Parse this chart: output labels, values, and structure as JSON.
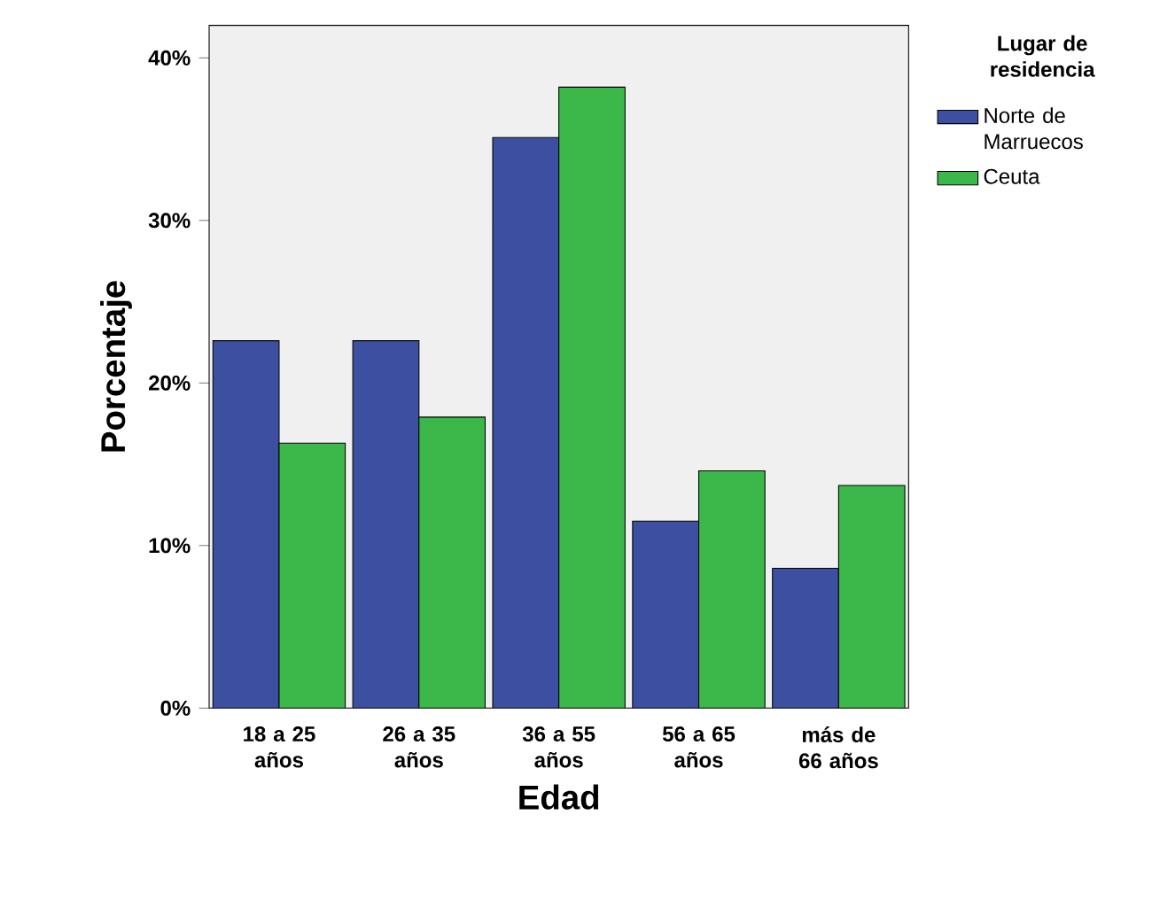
{
  "chart_data": {
    "type": "bar",
    "xlabel": "Edad",
    "ylabel": "Porcentaje",
    "legend_title": "Lugar de residencia",
    "legend": "right",
    "categories": [
      "18 a 25 años",
      "26 a 35 años",
      "36 a 55 años",
      "56 a 65 años",
      "más de 66 años"
    ],
    "ylim": [
      0,
      42
    ],
    "yticks": [
      {
        "value": 0,
        "label": "0%"
      },
      {
        "value": 10,
        "label": "10%"
      },
      {
        "value": 20,
        "label": "20%"
      },
      {
        "value": 30,
        "label": "30%"
      },
      {
        "value": 40,
        "label": "40%"
      }
    ],
    "series": [
      {
        "name": "Norte de Marruecos",
        "color": "#3c4fa0",
        "values": [
          22.6,
          22.6,
          35.1,
          11.5,
          8.6
        ]
      },
      {
        "name": "Ceuta",
        "color": "#3cb84a",
        "values": [
          16.3,
          17.9,
          38.2,
          14.6,
          13.7
        ]
      }
    ]
  }
}
